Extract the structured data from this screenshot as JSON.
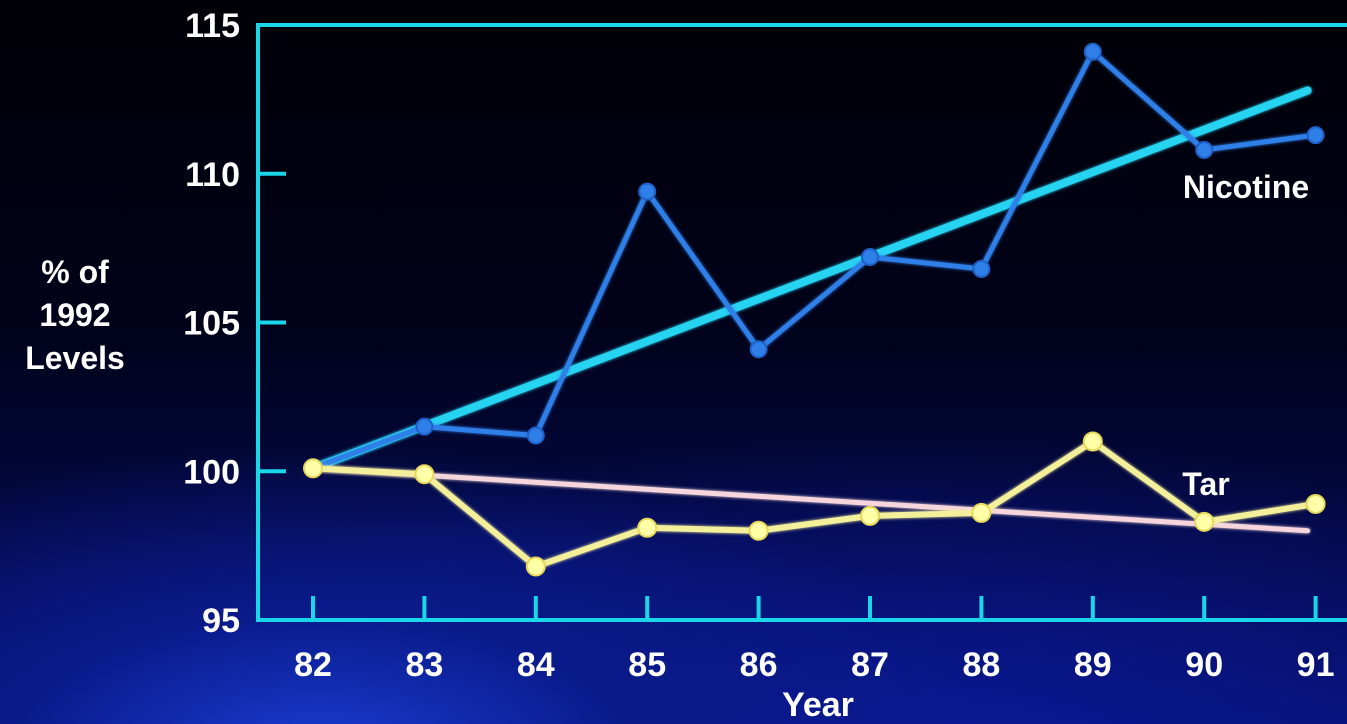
{
  "chart_data": {
    "type": "line",
    "title": "",
    "xlabel": "Year",
    "ylabel_lines": [
      "% of",
      "1992",
      "Levels"
    ],
    "categories": [
      "82",
      "83",
      "84",
      "85",
      "86",
      "87",
      "88",
      "89",
      "90",
      "91"
    ],
    "ylim": [
      95,
      115
    ],
    "yticks": [
      "95",
      "100",
      "105",
      "110",
      "115"
    ],
    "grid": false,
    "series": [
      {
        "name": "Nicotine",
        "color": "#2f7fe8",
        "values": [
          100.1,
          101.5,
          101.2,
          109.4,
          104.1,
          107.2,
          106.8,
          114.1,
          110.8,
          111.3
        ]
      },
      {
        "name": "Tar",
        "color": "#f4ef9a",
        "values": [
          100.1,
          99.9,
          96.8,
          98.1,
          98.0,
          98.5,
          98.6,
          101.0,
          98.3,
          98.9
        ]
      }
    ],
    "trend_lines": [
      {
        "series": "Nicotine",
        "color": "#27d3f0",
        "start": 100.1,
        "end": 112.8
      },
      {
        "series": "Tar",
        "color": "#f6d6dc",
        "start": 100.1,
        "end": 98.0
      }
    ],
    "colors": {
      "axis": "#19d6e8",
      "text": "#ffffff",
      "tar_marker_fill": "#ffffa8"
    }
  }
}
